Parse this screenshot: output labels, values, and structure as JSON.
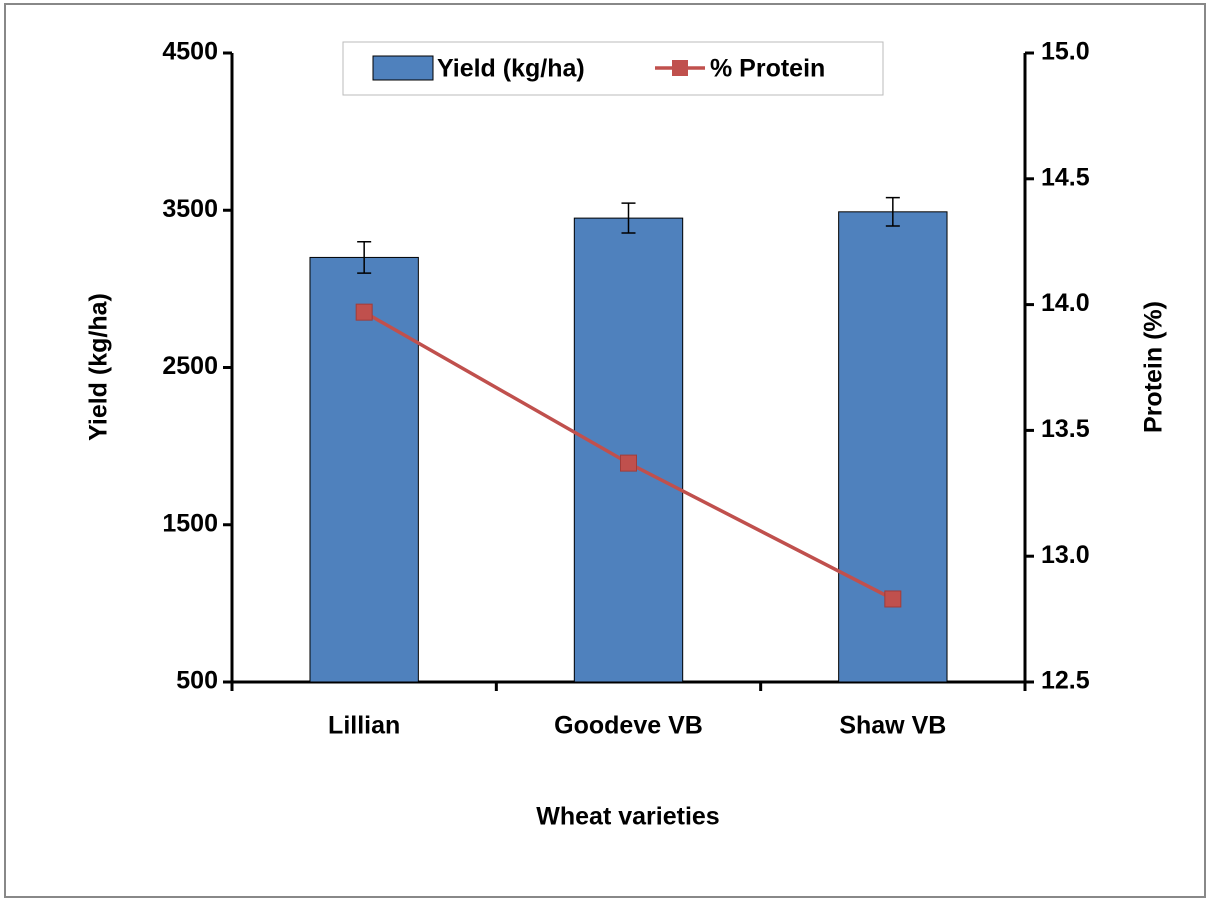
{
  "chart_data": {
    "type": "bar-line",
    "x_label": "Wheat varieties",
    "y_label": "Yield (kg/ha)",
    "y2_label": "Protein (%)",
    "categories": [
      "Lillian",
      "Goodeve VB",
      "Shaw VB"
    ],
    "series": [
      {
        "name": "Yield (kg/ha)",
        "type": "bar",
        "color": "#4f81bd",
        "values": [
          3200,
          3450,
          3490
        ],
        "errors": [
          100,
          95,
          90
        ]
      },
      {
        "name": "% Protein",
        "type": "line",
        "color": "#c0504d",
        "axis": "y2",
        "values": [
          13.97,
          13.37,
          12.83
        ]
      }
    ],
    "ylim": [
      500,
      4500
    ],
    "yticks": [
      500,
      1500,
      2500,
      3500,
      4500
    ],
    "y2lim": [
      12.5,
      15.0
    ],
    "y2ticks": [
      12.5,
      {
        "value": 13.0,
        "label": "13.0"
      },
      13.5,
      {
        "value": 14.0,
        "label": "14.0"
      },
      14.5,
      {
        "value": 15.0,
        "label": "15.0"
      }
    ],
    "legend": "top"
  }
}
